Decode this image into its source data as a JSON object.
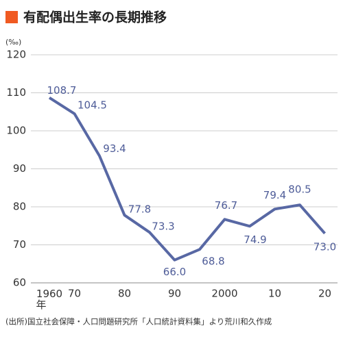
{
  "chart_data": {
    "type": "line",
    "title": "有配偶出生率の長期推移",
    "y_unit": "(‰)",
    "source": "(出所)国立社会保障・人口問題研究所「人口統計資料集」より荒川和久作成",
    "categories": [
      "1960年",
      "70",
      null,
      "80",
      null,
      "90",
      null,
      "2000",
      null,
      "10",
      null,
      "20"
    ],
    "series": [
      {
        "name": "有配偶出生率",
        "color": "#5868a4",
        "values": [
          108.7,
          104.5,
          93.4,
          77.8,
          73.3,
          66.0,
          68.8,
          76.7,
          74.9,
          79.4,
          80.5,
          73.0
        ],
        "value_labels": [
          "108.7",
          "104.5",
          "93.4",
          "77.8",
          "73.3",
          "66.0",
          "68.8",
          "76.7",
          "74.9",
          "79.4",
          "80.5",
          "73.0"
        ]
      }
    ],
    "ylim": [
      60,
      120
    ],
    "yticks": [
      60,
      70,
      80,
      90,
      100,
      110,
      120
    ],
    "grid": true
  }
}
